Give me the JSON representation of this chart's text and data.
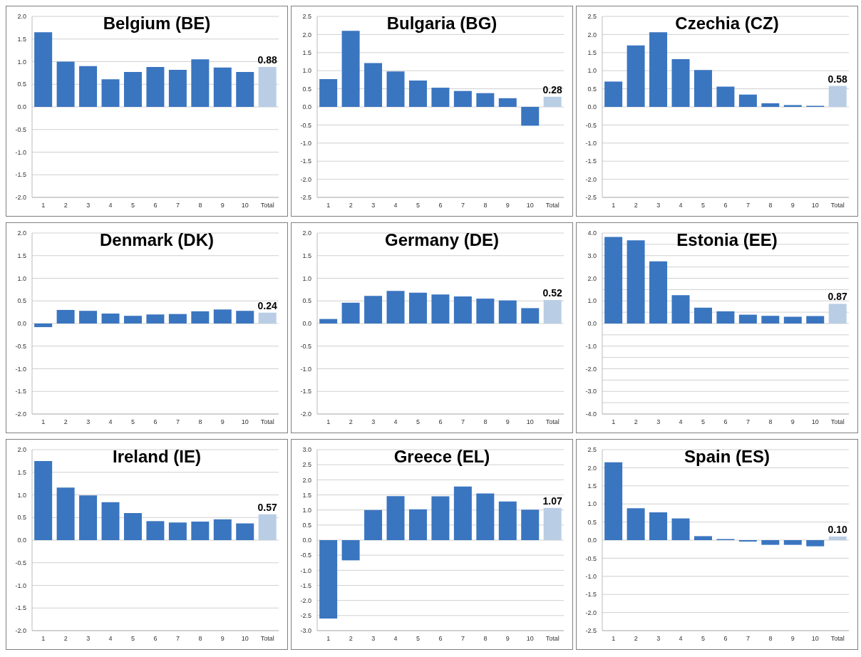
{
  "chart_data": [
    {
      "type": "bar",
      "title": "Belgium (BE)",
      "categories": [
        "1",
        "2",
        "3",
        "4",
        "5",
        "6",
        "7",
        "8",
        "9",
        "10",
        "Total"
      ],
      "values": [
        1.65,
        1.0,
        0.9,
        0.61,
        0.77,
        0.88,
        0.82,
        1.05,
        0.87,
        0.77,
        0.88
      ],
      "colors": [
        "#3a75c0",
        "#3a75c0",
        "#3a75c0",
        "#3a75c0",
        "#3a75c0",
        "#3a75c0",
        "#3a75c0",
        "#3a75c0",
        "#3a75c0",
        "#3a75c0",
        "#b9cde5"
      ],
      "value_labels": [
        null,
        null,
        null,
        null,
        null,
        null,
        null,
        null,
        null,
        null,
        "0.88"
      ],
      "ylim": [
        -2,
        2
      ],
      "yticks": [
        {
          "value": -2,
          "label": "-2.0"
        },
        {
          "value": -1.5,
          "label": "-1.5"
        },
        {
          "value": -1,
          "label": "-1.0"
        },
        {
          "value": -0.5,
          "label": "-0.5"
        },
        {
          "value": 0,
          "label": "0.0"
        },
        {
          "value": 0.5,
          "label": "0.5"
        },
        {
          "value": 1,
          "label": "1.0"
        },
        {
          "value": 1.5,
          "label": "1.5"
        },
        {
          "value": 2,
          "label": "2.0"
        }
      ],
      "grid": "y"
    },
    {
      "type": "bar",
      "title": "Bulgaria (BG)",
      "categories": [
        "1",
        "2",
        "3",
        "4",
        "5",
        "6",
        "7",
        "8",
        "9",
        "10",
        "Total"
      ],
      "values": [
        0.77,
        2.1,
        1.21,
        0.98,
        0.73,
        0.53,
        0.44,
        0.38,
        0.24,
        -0.52,
        0.28
      ],
      "colors": [
        "#3a75c0",
        "#3a75c0",
        "#3a75c0",
        "#3a75c0",
        "#3a75c0",
        "#3a75c0",
        "#3a75c0",
        "#3a75c0",
        "#3a75c0",
        "#3a75c0",
        "#b9cde5"
      ],
      "value_labels": [
        null,
        null,
        null,
        null,
        null,
        null,
        null,
        null,
        null,
        null,
        "0.28"
      ],
      "ylim": [
        -2.5,
        2.5
      ],
      "yticks": [
        {
          "value": -2.5,
          "label": "-2.5"
        },
        {
          "value": -2,
          "label": "-2.0"
        },
        {
          "value": -1.5,
          "label": "-1.5"
        },
        {
          "value": -1,
          "label": "-1.0"
        },
        {
          "value": -0.5,
          "label": "-0.5"
        },
        {
          "value": 0,
          "label": "0.0"
        },
        {
          "value": 0.5,
          "label": "0.5"
        },
        {
          "value": 1,
          "label": "1.0"
        },
        {
          "value": 1.5,
          "label": "1.5"
        },
        {
          "value": 2,
          "label": "2.0"
        },
        {
          "value": 2.5,
          "label": "2.5"
        }
      ],
      "grid": "y"
    },
    {
      "type": "bar",
      "title": "Czechia (CZ)",
      "categories": [
        "1",
        "2",
        "3",
        "4",
        "5",
        "6",
        "7",
        "8",
        "9",
        "10",
        "Total"
      ],
      "values": [
        0.7,
        1.7,
        2.06,
        1.32,
        1.02,
        0.56,
        0.34,
        0.1,
        0.05,
        0.03,
        0.58
      ],
      "colors": [
        "#3a75c0",
        "#3a75c0",
        "#3a75c0",
        "#3a75c0",
        "#3a75c0",
        "#3a75c0",
        "#3a75c0",
        "#3a75c0",
        "#3a75c0",
        "#3a75c0",
        "#b9cde5"
      ],
      "value_labels": [
        null,
        null,
        null,
        null,
        null,
        null,
        null,
        null,
        null,
        null,
        "0.58"
      ],
      "ylim": [
        -2.5,
        2.5
      ],
      "yticks": [
        {
          "value": -2.5,
          "label": "-2.5"
        },
        {
          "value": -2,
          "label": "-2.0"
        },
        {
          "value": -1.5,
          "label": "-1.5"
        },
        {
          "value": -1,
          "label": "-1.0"
        },
        {
          "value": -0.5,
          "label": "-0.5"
        },
        {
          "value": 0,
          "label": "0.0"
        },
        {
          "value": 0.5,
          "label": "0.5"
        },
        {
          "value": 1,
          "label": "1.0"
        },
        {
          "value": 1.5,
          "label": "1.5"
        },
        {
          "value": 2,
          "label": "2.0"
        },
        {
          "value": 2.5,
          "label": "2.5"
        }
      ],
      "grid": "y"
    },
    {
      "type": "bar",
      "title": "Denmark (DK)",
      "categories": [
        "1",
        "2",
        "3",
        "4",
        "5",
        "6",
        "7",
        "8",
        "9",
        "10",
        "Total"
      ],
      "values": [
        -0.08,
        0.3,
        0.28,
        0.22,
        0.17,
        0.2,
        0.21,
        0.27,
        0.31,
        0.28,
        0.24
      ],
      "colors": [
        "#3a75c0",
        "#3a75c0",
        "#3a75c0",
        "#3a75c0",
        "#3a75c0",
        "#3a75c0",
        "#3a75c0",
        "#3a75c0",
        "#3a75c0",
        "#3a75c0",
        "#b9cde5"
      ],
      "value_labels": [
        null,
        null,
        null,
        null,
        null,
        null,
        null,
        null,
        null,
        null,
        "0.24"
      ],
      "ylim": [
        -2,
        2
      ],
      "yticks": [
        {
          "value": -2,
          "label": "-2.0"
        },
        {
          "value": -1.5,
          "label": "-1.5"
        },
        {
          "value": -1,
          "label": "-1.0"
        },
        {
          "value": -0.5,
          "label": "-0.5"
        },
        {
          "value": 0,
          "label": "0.0"
        },
        {
          "value": 0.5,
          "label": "0.5"
        },
        {
          "value": 1,
          "label": "1.0"
        },
        {
          "value": 1.5,
          "label": "1.5"
        },
        {
          "value": 2,
          "label": "2.0"
        }
      ],
      "grid": "y"
    },
    {
      "type": "bar",
      "title": "Germany (DE)",
      "categories": [
        "1",
        "2",
        "3",
        "4",
        "5",
        "6",
        "7",
        "8",
        "9",
        "10",
        "Total"
      ],
      "values": [
        0.1,
        0.46,
        0.61,
        0.72,
        0.68,
        0.64,
        0.6,
        0.55,
        0.51,
        0.34,
        0.52
      ],
      "colors": [
        "#3a75c0",
        "#3a75c0",
        "#3a75c0",
        "#3a75c0",
        "#3a75c0",
        "#3a75c0",
        "#3a75c0",
        "#3a75c0",
        "#3a75c0",
        "#3a75c0",
        "#b9cde5"
      ],
      "value_labels": [
        null,
        null,
        null,
        null,
        null,
        null,
        null,
        null,
        null,
        null,
        "0.52"
      ],
      "ylim": [
        -2,
        2
      ],
      "yticks": [
        {
          "value": -2,
          "label": "-2.0"
        },
        {
          "value": -1.5,
          "label": "-1.5"
        },
        {
          "value": -1,
          "label": "-1.0"
        },
        {
          "value": -0.5,
          "label": "-0.5"
        },
        {
          "value": 0,
          "label": "0.0"
        },
        {
          "value": 0.5,
          "label": "0.5"
        },
        {
          "value": 1,
          "label": "1.0"
        },
        {
          "value": 1.5,
          "label": "1.5"
        },
        {
          "value": 2,
          "label": "2.0"
        }
      ],
      "grid": "y"
    },
    {
      "type": "bar",
      "title": "Estonia (EE)",
      "categories": [
        "1",
        "2",
        "3",
        "4",
        "5",
        "6",
        "7",
        "8",
        "9",
        "10",
        "Total"
      ],
      "values": [
        3.83,
        3.68,
        2.75,
        1.25,
        0.7,
        0.54,
        0.39,
        0.34,
        0.3,
        0.33,
        0.87
      ],
      "colors": [
        "#3a75c0",
        "#3a75c0",
        "#3a75c0",
        "#3a75c0",
        "#3a75c0",
        "#3a75c0",
        "#3a75c0",
        "#3a75c0",
        "#3a75c0",
        "#3a75c0",
        "#b9cde5"
      ],
      "value_labels": [
        null,
        null,
        null,
        null,
        null,
        null,
        null,
        null,
        null,
        null,
        "0.87"
      ],
      "ylim": [
        -4,
        4
      ],
      "yticks": [
        {
          "value": -4,
          "label": "-4.0"
        },
        {
          "value": -3.5,
          "label": null
        },
        {
          "value": -3,
          "label": "-3.0"
        },
        {
          "value": -2.5,
          "label": null
        },
        {
          "value": -2,
          "label": "-2.0"
        },
        {
          "value": -1.5,
          "label": null
        },
        {
          "value": -1,
          "label": "-1.0"
        },
        {
          "value": -0.5,
          "label": null
        },
        {
          "value": 0,
          "label": "0.0"
        },
        {
          "value": 0.5,
          "label": null
        },
        {
          "value": 1,
          "label": "1.0"
        },
        {
          "value": 1.5,
          "label": null
        },
        {
          "value": 2,
          "label": "2.0"
        },
        {
          "value": 2.5,
          "label": null
        },
        {
          "value": 3,
          "label": "3.0"
        },
        {
          "value": 3.5,
          "label": null
        },
        {
          "value": 4,
          "label": "4.0"
        }
      ],
      "grid": "y"
    },
    {
      "type": "bar",
      "title": "Ireland (IE)",
      "categories": [
        "1",
        "2",
        "3",
        "4",
        "5",
        "6",
        "7",
        "8",
        "9",
        "10",
        "Total"
      ],
      "values": [
        1.75,
        1.16,
        0.99,
        0.84,
        0.6,
        0.42,
        0.39,
        0.41,
        0.46,
        0.37,
        0.57
      ],
      "colors": [
        "#3a75c0",
        "#3a75c0",
        "#3a75c0",
        "#3a75c0",
        "#3a75c0",
        "#3a75c0",
        "#3a75c0",
        "#3a75c0",
        "#3a75c0",
        "#3a75c0",
        "#b9cde5"
      ],
      "value_labels": [
        null,
        null,
        null,
        null,
        null,
        null,
        null,
        null,
        null,
        null,
        "0.57"
      ],
      "ylim": [
        -2,
        2
      ],
      "yticks": [
        {
          "value": -2,
          "label": "-2.0"
        },
        {
          "value": -1.5,
          "label": "-1.5"
        },
        {
          "value": -1,
          "label": "-1.0"
        },
        {
          "value": -0.5,
          "label": "-0.5"
        },
        {
          "value": 0,
          "label": "0.0"
        },
        {
          "value": 0.5,
          "label": "0.5"
        },
        {
          "value": 1,
          "label": "1.0"
        },
        {
          "value": 1.5,
          "label": "1.5"
        },
        {
          "value": 2,
          "label": "2.0"
        }
      ],
      "grid": "y"
    },
    {
      "type": "bar",
      "title": "Greece (EL)",
      "categories": [
        "1",
        "2",
        "3",
        "4",
        "5",
        "6",
        "7",
        "8",
        "9",
        "10",
        "Total"
      ],
      "values": [
        -2.6,
        -0.67,
        1.0,
        1.46,
        1.02,
        1.45,
        1.78,
        1.55,
        1.28,
        1.01,
        1.07
      ],
      "colors": [
        "#3a75c0",
        "#3a75c0",
        "#3a75c0",
        "#3a75c0",
        "#3a75c0",
        "#3a75c0",
        "#3a75c0",
        "#3a75c0",
        "#3a75c0",
        "#3a75c0",
        "#b9cde5"
      ],
      "value_labels": [
        null,
        null,
        null,
        null,
        null,
        null,
        null,
        null,
        null,
        null,
        "1.07"
      ],
      "ylim": [
        -3,
        3
      ],
      "yticks": [
        {
          "value": -3,
          "label": "-3.0"
        },
        {
          "value": -2.5,
          "label": "-2.5"
        },
        {
          "value": -2,
          "label": "-2.0"
        },
        {
          "value": -1.5,
          "label": "-1.5"
        },
        {
          "value": -1,
          "label": "-1.0"
        },
        {
          "value": -0.5,
          "label": "-0.5"
        },
        {
          "value": 0,
          "label": "0.0"
        },
        {
          "value": 0.5,
          "label": "0.5"
        },
        {
          "value": 1,
          "label": "1.0"
        },
        {
          "value": 1.5,
          "label": "1.5"
        },
        {
          "value": 2,
          "label": "2.0"
        },
        {
          "value": 2.5,
          "label": "2.5"
        },
        {
          "value": 3,
          "label": "3.0"
        }
      ],
      "grid": "y"
    },
    {
      "type": "bar",
      "title": "Spain (ES)",
      "categories": [
        "1",
        "2",
        "3",
        "4",
        "5",
        "6",
        "7",
        "8",
        "9",
        "10",
        "Total"
      ],
      "values": [
        2.15,
        0.88,
        0.77,
        0.6,
        0.11,
        0.03,
        -0.04,
        -0.13,
        -0.13,
        -0.17,
        0.1
      ],
      "colors": [
        "#3a75c0",
        "#3a75c0",
        "#3a75c0",
        "#3a75c0",
        "#3a75c0",
        "#3a75c0",
        "#3a75c0",
        "#3a75c0",
        "#3a75c0",
        "#3a75c0",
        "#b9cde5"
      ],
      "value_labels": [
        null,
        null,
        null,
        null,
        null,
        null,
        null,
        null,
        null,
        null,
        "0.10"
      ],
      "ylim": [
        -2.5,
        2.5
      ],
      "yticks": [
        {
          "value": -2.5,
          "label": "-2.5"
        },
        {
          "value": -2,
          "label": "-2.0"
        },
        {
          "value": -1.5,
          "label": "-1.5"
        },
        {
          "value": -1,
          "label": "-1.0"
        },
        {
          "value": -0.5,
          "label": "-0.5"
        },
        {
          "value": 0,
          "label": "0.0"
        },
        {
          "value": 0.5,
          "label": "0.5"
        },
        {
          "value": 1,
          "label": "1.0"
        },
        {
          "value": 1.5,
          "label": "1.5"
        },
        {
          "value": 2,
          "label": "2.0"
        },
        {
          "value": 2.5,
          "label": "2.5"
        }
      ],
      "grid": "y"
    }
  ]
}
